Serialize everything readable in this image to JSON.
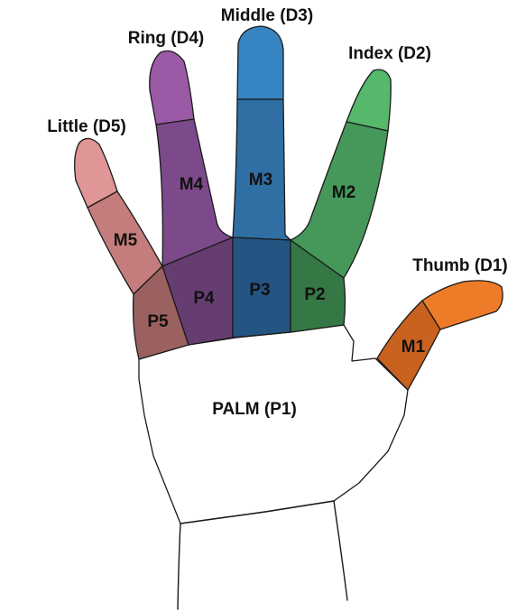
{
  "diagram": {
    "fingers": [
      {
        "id": "little",
        "name": "Little (D5)",
        "tip_color": "#e09596",
        "mid_color": "#c47d7c",
        "mid_label": "M5",
        "prox_color": "#9b6160",
        "prox_label": "P5"
      },
      {
        "id": "ring",
        "name": "Ring (D4)",
        "tip_color": "#9a5aa6",
        "mid_color": "#7c4a8a",
        "mid_label": "M4",
        "prox_color": "#663d70",
        "prox_label": "P4"
      },
      {
        "id": "middle",
        "name": "Middle (D3)",
        "tip_color": "#3685c2",
        "mid_color": "#2f6fa4",
        "mid_label": "M3",
        "prox_color": "#245482",
        "prox_label": "P3"
      },
      {
        "id": "index",
        "name": "Index (D2)",
        "tip_color": "#55b86b",
        "mid_color": "#46985a",
        "mid_label": "M2",
        "prox_color": "#357845",
        "prox_label": "P2"
      },
      {
        "id": "thumb",
        "name": "Thumb (D1)",
        "tip_color": "#ee7b27",
        "mid_color": "#c9611f",
        "mid_label": "M1"
      }
    ],
    "palm": {
      "label": "PALM (P1)",
      "color": "#ffffff"
    }
  }
}
